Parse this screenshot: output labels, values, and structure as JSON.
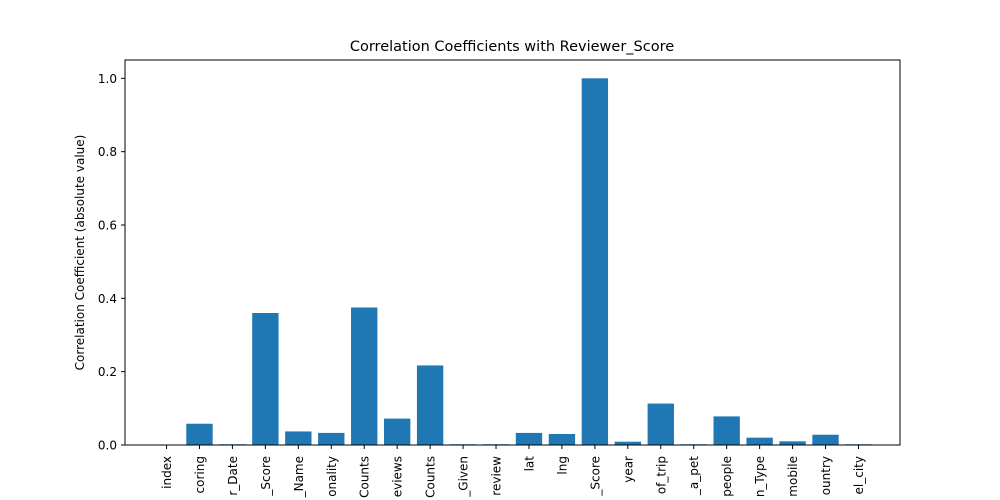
{
  "chart_data": {
    "type": "bar",
    "title": "Correlation Coefficients with Reviewer_Score",
    "xlabel": "",
    "ylabel": "Correlation Coefficient (absolute value)",
    "ylim": [
      0,
      1.05
    ],
    "yticks": [
      0.0,
      0.2,
      0.4,
      0.6,
      0.8,
      1.0
    ],
    "ytick_labels": [
      "0.0",
      "0.2",
      "0.4",
      "0.6",
      "0.8",
      "1.0"
    ],
    "categories": [
      "index",
      "coring",
      "r_Date",
      "_Score",
      "_Name",
      "onality",
      "Counts",
      "eviews",
      "Counts",
      "_Given",
      "review",
      "lat",
      "lng",
      "_Score",
      "year",
      "of_trip",
      "_a_pet",
      "people",
      "n_Type",
      "mobile",
      "ountry",
      "el_city"
    ],
    "values": [
      0.0,
      0.058,
      0.002,
      0.36,
      0.037,
      0.033,
      0.375,
      0.072,
      0.217,
      0.002,
      0.002,
      0.033,
      0.03,
      1.0,
      0.009,
      0.113,
      0.002,
      0.078,
      0.02,
      0.01,
      0.028,
      0.002
    ],
    "bar_color": "#1f77b4",
    "grid": false,
    "legend": "none"
  }
}
